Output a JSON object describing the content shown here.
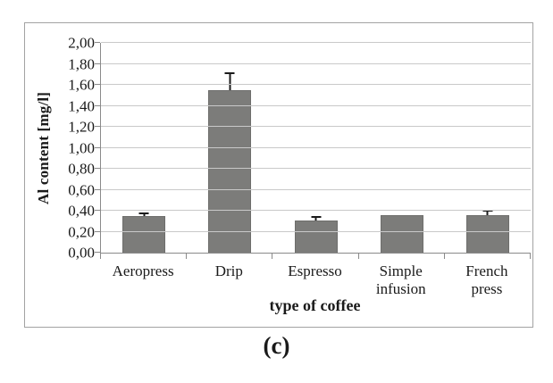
{
  "figure": {
    "caption": "(c)"
  },
  "chart_data": {
    "type": "bar",
    "title": "",
    "xlabel": "type of coffee",
    "ylabel": "Al content [mg/l]",
    "ylim": [
      0,
      2.0
    ],
    "ytick_step": 0.2,
    "ytick_labels": [
      "0,00",
      "0,20",
      "0,40",
      "0,60",
      "0,80",
      "1,00",
      "1,20",
      "1,40",
      "1,60",
      "1,80",
      "2,00"
    ],
    "categories": [
      "Aeropress",
      "Drip",
      "Espresso",
      "Simple infusion",
      "French press"
    ],
    "values": [
      0.35,
      1.55,
      0.31,
      0.36,
      0.36
    ],
    "error_plus": [
      0.03,
      0.17,
      0.04,
      0,
      0.05
    ],
    "grid": true,
    "legend": false,
    "colors": {
      "bar": "#7c7c7a",
      "bar_border": "#6e6e6c",
      "gridline": "#c9c9c9",
      "axis": "#8a8a8a",
      "error_bar": "#1b1b1b",
      "text": "#1a1a1a",
      "chart_border": "#a3a3a3",
      "background": "#ffffff"
    }
  }
}
